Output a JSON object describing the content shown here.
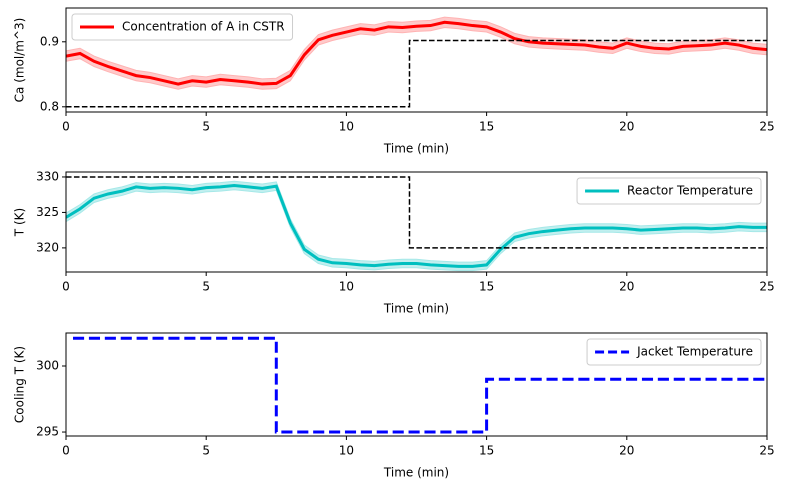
{
  "chart_data": [
    {
      "type": "line",
      "xlabel": "Time (min)",
      "ylabel": "Ca (mol/m^3)",
      "xlim": [
        0,
        25
      ],
      "xticks": [
        0,
        5,
        10,
        15,
        20,
        25
      ],
      "ylim": [
        0.792,
        0.952
      ],
      "yticks": [
        0.8,
        0.9
      ],
      "legend": "upper left",
      "x": [
        0,
        0.5,
        1,
        1.5,
        2,
        2.5,
        3,
        3.5,
        4,
        4.5,
        5,
        5.5,
        6,
        6.5,
        7,
        7.5,
        8,
        8.5,
        9,
        9.5,
        10,
        10.5,
        11,
        11.5,
        12,
        12.5,
        13,
        13.5,
        14,
        14.5,
        15,
        15.5,
        16,
        16.5,
        17,
        17.5,
        18,
        18.5,
        19,
        19.5,
        20,
        20.5,
        21,
        21.5,
        22,
        22.5,
        23,
        23.5,
        24,
        24.5,
        25
      ],
      "series": [
        {
          "name": "Concentration of A in CSTR",
          "color": "#ff0000",
          "linestyle": "solid",
          "linewidth": 3,
          "band_color": "#ffb3b3",
          "values": [
            0.878,
            0.882,
            0.87,
            0.862,
            0.855,
            0.848,
            0.845,
            0.84,
            0.835,
            0.84,
            0.838,
            0.842,
            0.84,
            0.838,
            0.835,
            0.836,
            0.848,
            0.88,
            0.903,
            0.91,
            0.915,
            0.92,
            0.918,
            0.923,
            0.922,
            0.924,
            0.925,
            0.93,
            0.928,
            0.925,
            0.923,
            0.915,
            0.905,
            0.9,
            0.898,
            0.897,
            0.896,
            0.895,
            0.892,
            0.89,
            0.898,
            0.893,
            0.89,
            0.889,
            0.893,
            0.894,
            0.895,
            0.898,
            0.895,
            0.89,
            0.888
          ],
          "lower": [
            0.87,
            0.874,
            0.862,
            0.854,
            0.847,
            0.84,
            0.837,
            0.832,
            0.827,
            0.832,
            0.83,
            0.834,
            0.832,
            0.83,
            0.827,
            0.828,
            0.84,
            0.872,
            0.895,
            0.902,
            0.907,
            0.912,
            0.91,
            0.915,
            0.914,
            0.916,
            0.917,
            0.922,
            0.92,
            0.917,
            0.915,
            0.907,
            0.897,
            0.892,
            0.89,
            0.889,
            0.888,
            0.887,
            0.884,
            0.882,
            0.89,
            0.885,
            0.882,
            0.881,
            0.885,
            0.886,
            0.887,
            0.89,
            0.887,
            0.882,
            0.88
          ],
          "upper": [
            0.886,
            0.89,
            0.878,
            0.87,
            0.863,
            0.856,
            0.853,
            0.848,
            0.843,
            0.848,
            0.846,
            0.85,
            0.848,
            0.846,
            0.843,
            0.844,
            0.856,
            0.888,
            0.911,
            0.918,
            0.923,
            0.928,
            0.926,
            0.931,
            0.93,
            0.932,
            0.933,
            0.938,
            0.936,
            0.933,
            0.931,
            0.923,
            0.913,
            0.908,
            0.906,
            0.905,
            0.904,
            0.903,
            0.9,
            0.898,
            0.906,
            0.901,
            0.898,
            0.897,
            0.901,
            0.902,
            0.903,
            0.906,
            0.903,
            0.898,
            0.896
          ]
        },
        {
          "color": "#000000",
          "linestyle": "dashed",
          "linewidth": 1.5,
          "x": [
            0,
            12.25,
            12.25,
            25
          ],
          "values": [
            0.8,
            0.8,
            0.902,
            0.902
          ]
        }
      ]
    },
    {
      "type": "line",
      "xlabel": "Time (min)",
      "ylabel": "T (K)",
      "xlim": [
        0,
        25
      ],
      "xticks": [
        0,
        5,
        10,
        15,
        20,
        25
      ],
      "ylim": [
        316.6,
        330.7
      ],
      "yticks": [
        320,
        325,
        330
      ],
      "legend": "upper right",
      "x": [
        0,
        0.5,
        1,
        1.5,
        2,
        2.5,
        3,
        3.5,
        4,
        4.5,
        5,
        5.5,
        6,
        6.5,
        7,
        7.5,
        8,
        8.5,
        9,
        9.5,
        10,
        10.5,
        11,
        11.5,
        12,
        12.5,
        13,
        13.5,
        14,
        14.5,
        15,
        15.5,
        16,
        16.5,
        17,
        17.5,
        18,
        18.5,
        19,
        19.5,
        20,
        20.5,
        21,
        21.5,
        22,
        22.5,
        23,
        23.5,
        24,
        24.5,
        25
      ],
      "series": [
        {
          "name": "Reactor Temperature",
          "color": "#00bfbf",
          "linestyle": "solid",
          "linewidth": 3,
          "band_color": "#a6e8e8",
          "values": [
            324.3,
            325.5,
            327.0,
            327.6,
            328.0,
            328.6,
            328.4,
            328.5,
            328.4,
            328.2,
            328.5,
            328.6,
            328.8,
            328.6,
            328.4,
            328.7,
            323.5,
            319.8,
            318.4,
            317.9,
            317.8,
            317.6,
            317.5,
            317.7,
            317.8,
            317.8,
            317.6,
            317.5,
            317.4,
            317.4,
            317.6,
            319.8,
            321.5,
            322.0,
            322.3,
            322.5,
            322.7,
            322.8,
            322.8,
            322.8,
            322.7,
            322.5,
            322.6,
            322.7,
            322.8,
            322.8,
            322.7,
            322.8,
            323.0,
            322.9,
            322.9
          ],
          "lower": [
            323.7,
            324.9,
            326.4,
            327.0,
            327.4,
            328.0,
            327.8,
            327.9,
            327.8,
            327.6,
            327.9,
            328.0,
            328.2,
            328.0,
            327.8,
            328.1,
            322.9,
            319.2,
            317.8,
            317.3,
            317.2,
            317.0,
            316.9,
            317.1,
            317.2,
            317.2,
            317.0,
            316.9,
            316.8,
            316.8,
            317.0,
            319.2,
            320.9,
            321.4,
            321.7,
            321.9,
            322.1,
            322.2,
            322.2,
            322.2,
            322.1,
            321.9,
            322.0,
            322.1,
            322.2,
            322.2,
            322.1,
            322.2,
            322.4,
            322.3,
            322.3
          ],
          "upper": [
            324.9,
            326.1,
            327.6,
            328.2,
            328.6,
            329.2,
            329.0,
            329.1,
            329.0,
            328.8,
            329.1,
            329.2,
            329.4,
            329.2,
            329.0,
            329.3,
            324.1,
            320.4,
            319.0,
            318.5,
            318.4,
            318.2,
            318.1,
            318.3,
            318.4,
            318.4,
            318.2,
            318.1,
            318.0,
            318.0,
            318.2,
            320.4,
            322.1,
            322.6,
            322.9,
            323.1,
            323.3,
            323.4,
            323.4,
            323.4,
            323.3,
            323.1,
            323.2,
            323.3,
            323.4,
            323.4,
            323.3,
            323.4,
            323.6,
            323.5,
            323.5
          ]
        },
        {
          "color": "#000000",
          "linestyle": "dashed",
          "linewidth": 1.5,
          "x": [
            0,
            12.25,
            12.25,
            25
          ],
          "values": [
            330,
            330,
            320,
            320
          ]
        }
      ]
    },
    {
      "type": "line",
      "xlabel": "Time (min)",
      "ylabel": "Cooling T (K)",
      "xlim": [
        0,
        25
      ],
      "xticks": [
        0,
        5,
        10,
        15,
        20,
        25
      ],
      "ylim": [
        294.7,
        302.5
      ],
      "yticks": [
        295,
        300
      ],
      "legend": "upper right",
      "series": [
        {
          "name": "Jacket Temperature",
          "color": "#0000ff",
          "linestyle": "dashed",
          "linewidth": 3,
          "x": [
            0.25,
            7.5,
            7.5,
            15,
            15,
            25
          ],
          "values": [
            302.1,
            302.1,
            295,
            295,
            299,
            299
          ]
        }
      ]
    }
  ]
}
